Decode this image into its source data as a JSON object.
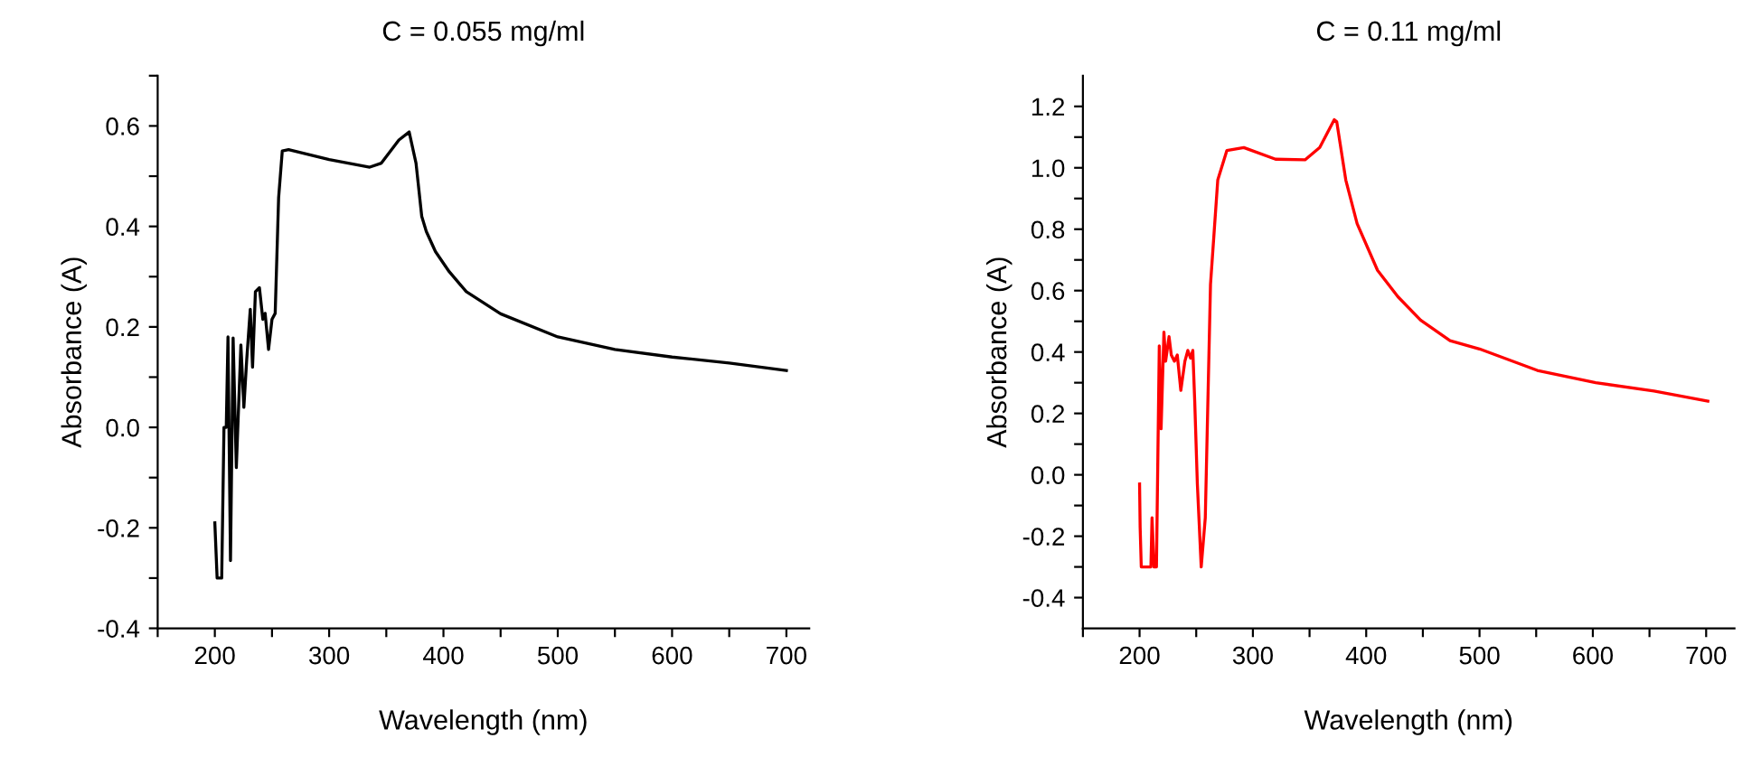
{
  "chart_data": [
    {
      "type": "line",
      "title": "C = 0.055 mg/ml",
      "xlabel": "Wavelength (nm)",
      "ylabel": "Absorbance (A)",
      "xlim": [
        150,
        720
      ],
      "ylim": [
        -0.4,
        0.7
      ],
      "xticks": [
        {
          "value": 150,
          "label": null
        },
        200,
        {
          "value": 250,
          "label": null
        },
        300,
        {
          "value": 350,
          "label": null
        },
        400,
        {
          "value": 450,
          "label": null
        },
        500,
        {
          "value": 550,
          "label": null
        },
        600,
        {
          "value": 650,
          "label": null
        },
        700
      ],
      "yticks": [
        -0.4,
        {
          "value": -0.3,
          "label": null
        },
        -0.2,
        {
          "value": -0.1,
          "label": null
        },
        {
          "value": 0,
          "label": "0.0"
        },
        {
          "value": 0.1,
          "label": null
        },
        0.2,
        {
          "value": 0.3,
          "label": null
        },
        0.4,
        {
          "value": 0.5,
          "label": null
        },
        0.6,
        {
          "value": 0.7,
          "label": null
        }
      ],
      "grid": false,
      "legend": false,
      "series": [
        {
          "color": "#000000",
          "x": [
            200,
            202,
            206,
            208,
            210,
            211.5,
            213.7,
            216,
            218.8,
            222.8,
            225.4,
            227.9,
            231,
            233,
            235.5,
            239,
            242,
            244,
            247,
            250,
            252.8,
            255.8,
            259,
            264.5,
            300,
            335.5,
            345.7,
            361,
            370,
            376,
            381,
            385,
            393,
            405,
            420,
            450,
            500,
            550,
            600,
            650,
            700
          ],
          "values": [
            -0.19,
            -0.3,
            -0.3,
            0.0,
            0.0,
            0.18,
            -0.265,
            0.178,
            -0.08,
            0.164,
            0.04,
            0.135,
            0.235,
            0.12,
            0.27,
            0.278,
            0.215,
            0.227,
            0.155,
            0.215,
            0.227,
            0.457,
            0.55,
            0.553,
            0.533,
            0.518,
            0.526,
            0.572,
            0.588,
            0.526,
            0.42,
            0.39,
            0.35,
            0.31,
            0.27,
            0.226,
            0.18,
            0.155,
            0.14,
            0.128,
            0.113
          ]
        }
      ]
    },
    {
      "type": "line",
      "title": "C = 0.11 mg/ml",
      "xlabel": "Wavelength (nm)",
      "ylabel": "Absorbance (A)",
      "xlim": [
        150,
        725
      ],
      "ylim": [
        -0.5,
        1.3
      ],
      "xticks": [
        {
          "value": 150,
          "label": null
        },
        200,
        {
          "value": 250,
          "label": null
        },
        300,
        {
          "value": 350,
          "label": null
        },
        400,
        {
          "value": 450,
          "label": null
        },
        500,
        {
          "value": 550,
          "label": null
        },
        600,
        {
          "value": 650,
          "label": null
        },
        700
      ],
      "yticks": [
        -0.4,
        {
          "value": -0.3,
          "label": null
        },
        -0.2,
        {
          "value": -0.1,
          "label": null
        },
        {
          "value": 0,
          "label": "0.0"
        },
        {
          "value": 0.1,
          "label": null
        },
        0.2,
        {
          "value": 0.3,
          "label": null
        },
        0.4,
        {
          "value": 0.5,
          "label": null
        },
        0.6,
        {
          "value": 0.7,
          "label": null
        },
        0.8,
        {
          "value": 0.9,
          "label": null
        },
        {
          "value": 1,
          "label": "1.0"
        },
        {
          "value": 1.1,
          "label": null
        },
        1.2
      ],
      "grid": false,
      "legend": false,
      "series": [
        {
          "color": "#ff0000",
          "x": [
            200,
            200.5,
            201.5,
            210,
            211,
            212.8,
            214.9,
            217.4,
            219,
            221.5,
            223,
            226,
            228,
            230.8,
            233.3,
            236.4,
            240,
            242.6,
            245,
            247,
            248.7,
            251,
            254.4,
            258,
            262.6,
            269,
            277,
            292,
            320,
            346,
            359,
            371.8,
            374,
            382,
            392,
            410,
            428,
            448,
            474,
            500,
            551,
            602.5,
            654,
            701.5
          ],
          "values": [
            -0.03,
            -0.17,
            -0.3,
            -0.3,
            -0.14,
            -0.3,
            -0.3,
            0.42,
            0.15,
            0.465,
            0.37,
            0.45,
            0.39,
            0.37,
            0.39,
            0.275,
            0.37,
            0.405,
            0.38,
            0.405,
            0.237,
            -0.03,
            -0.3,
            -0.14,
            0.62,
            0.96,
            1.056,
            1.066,
            1.028,
            1.026,
            1.066,
            1.157,
            1.15,
            0.96,
            0.818,
            0.666,
            0.58,
            0.504,
            0.437,
            0.41,
            0.34,
            0.3,
            0.273,
            0.24
          ]
        }
      ]
    }
  ]
}
